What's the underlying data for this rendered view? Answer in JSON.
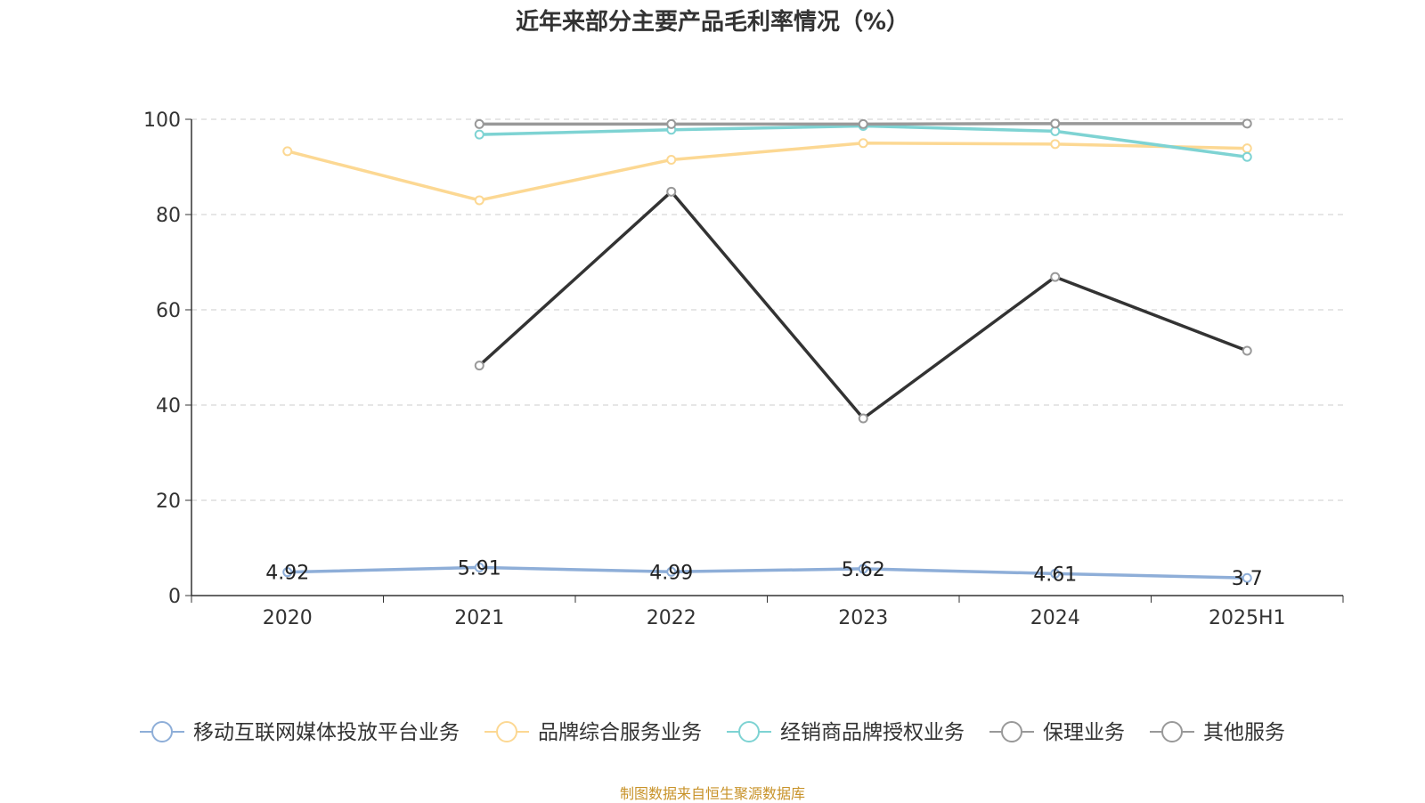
{
  "chart_data": {
    "type": "line",
    "title": "近年来部分主要产品毛利率情况（%）",
    "categories": [
      "2020",
      "2021",
      "2022",
      "2023",
      "2024",
      "2025H1"
    ],
    "ylim": [
      0,
      100
    ],
    "yticks": [
      "0",
      "20",
      "40",
      "60",
      "80",
      "100"
    ],
    "grid": true,
    "legend_position": "bottom",
    "series": [
      {
        "name": "移动互联网媒体投放平台业务",
        "color": "#8eaed8",
        "values": [
          4.92,
          5.91,
          4.99,
          5.62,
          4.61,
          3.7
        ],
        "labels": [
          "4.92",
          "5.91",
          "4.99",
          "5.62",
          "4.61",
          "3.7"
        ]
      },
      {
        "name": "品牌综合服务业务",
        "color": "#fcd893",
        "values": [
          93.3,
          83.0,
          91.5,
          95.0,
          94.8,
          93.9
        ],
        "labels": []
      },
      {
        "name": "经销商品牌授权业务",
        "color": "#7ed3d3",
        "values": [
          null,
          96.8,
          97.8,
          98.6,
          97.5,
          92.1
        ],
        "labels": []
      },
      {
        "name": "保理业务",
        "color": "#999999",
        "values": [
          null,
          99.0,
          99.0,
          99.0,
          99.1,
          99.1
        ],
        "labels": []
      },
      {
        "name": "其他服务",
        "color": "#333333",
        "values": [
          null,
          48.3,
          84.8,
          37.2,
          66.9,
          51.4
        ],
        "labels": []
      }
    ]
  },
  "footer": {
    "source": "制图数据来自恒生聚源数据库"
  }
}
